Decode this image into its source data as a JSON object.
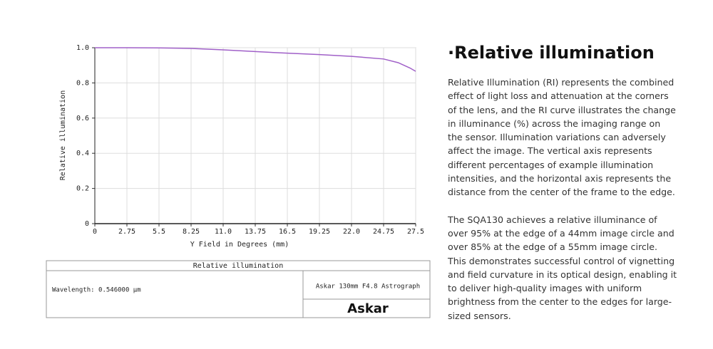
{
  "chart_data": {
    "type": "line",
    "x_label": "Y Field in Degrees (mm)",
    "y_label": "Relative illumination",
    "x": [
      0,
      2.75,
      5.5,
      8.25,
      11,
      13.75,
      16.5,
      19.25,
      22,
      24.75,
      26,
      27,
      27.5
    ],
    "series": [
      {
        "name": "Relative illumination",
        "color": "#a060c8",
        "values": [
          1.0,
          1.0,
          0.999,
          0.996,
          0.988,
          0.978,
          0.969,
          0.961,
          0.951,
          0.936,
          0.915,
          0.885,
          0.866
        ]
      }
    ],
    "xlim": [
      0,
      27.5
    ],
    "xticks": [
      0,
      2.75,
      5.5,
      8.25,
      {
        "value": 11,
        "label": "11.0"
      },
      13.75,
      16.5,
      19.25,
      {
        "value": 22,
        "label": "22.0"
      },
      24.75,
      27.5
    ],
    "ylim": [
      0,
      1
    ],
    "yticks": [
      0,
      0.2,
      0.4,
      0.6,
      0.8,
      {
        "value": 1,
        "label": "1.0"
      }
    ],
    "grid": true
  },
  "info_box": {
    "title": "Relative illumination",
    "wavelength": "Wavelength: 0.546000 µm",
    "lens": "Askar 130mm F4.8 Astrograph",
    "logo": "Askar"
  },
  "side_text": {
    "heading": "·Relative illumination",
    "paragraphs": [
      "Relative Illumination (RI) represents the combined effect of light loss and attenuation at the corners of the lens, and the RI curve illustrates the change in illuminance (%) across the imaging range on the sensor. Illumination variations can adversely affect the image. The vertical axis represents different percentages of example illumination intensities, and the horizontal axis represents the distance from the center of the frame to the edge.",
      "The SQA130 achieves a relative illuminance of over 95% at the edge of a 44mm image circle and over 85% at the edge of a 55mm image circle. This demonstrates successful control of vignetting and field curvature in its optical design, enabling it to deliver high-quality images with uniform brightness from the center to the edges for large-sized sensors."
    ]
  }
}
